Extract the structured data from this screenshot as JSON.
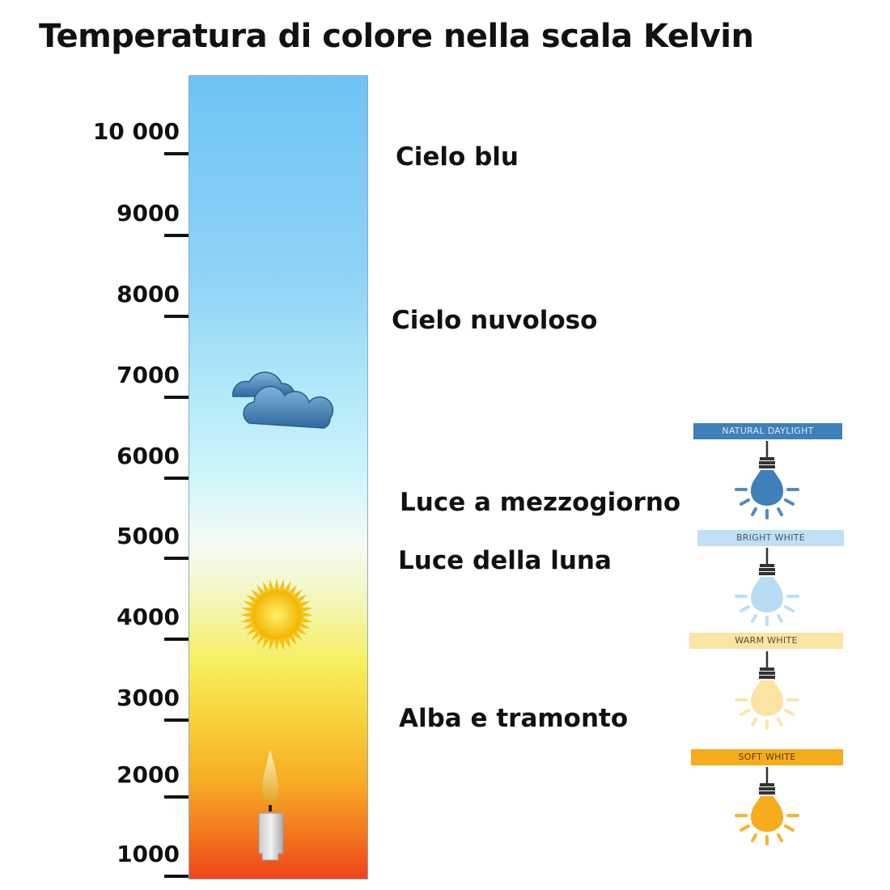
{
  "title": "Temperatura di colore nella scala Kelvin",
  "scale": {
    "ticks": [
      "10 000",
      "9000",
      "8000",
      "7000",
      "6000",
      "5000",
      "4000",
      "3000",
      "2000",
      "1000"
    ]
  },
  "labels": [
    "Cielo blu",
    "Cielo nuvoloso",
    "Luce a mezzogiorno",
    "Luce della luna",
    "Alba e tramonto"
  ],
  "icons": [
    "cloud-icon",
    "sun-icon",
    "candle-icon"
  ],
  "bulbs": [
    {
      "label": "NATURAL DAYLIGHT",
      "band_color": "#3f7fba",
      "text_color": "#dbe9f6",
      "bulb_color": "#3f7fba"
    },
    {
      "label": "BRIGHT WHITE",
      "band_color": "#bfe0f5",
      "text_color": "#4a5663",
      "bulb_color": "#b7dcf3"
    },
    {
      "label": "WARM WHITE",
      "band_color": "#fbe3a4",
      "text_color": "#5a4a2e",
      "bulb_color": "#fbe3a4"
    },
    {
      "label": "SOFT WHITE",
      "band_color": "#f6ac1c",
      "text_color": "#5a3a10",
      "bulb_color": "#f6ac1c"
    }
  ]
}
